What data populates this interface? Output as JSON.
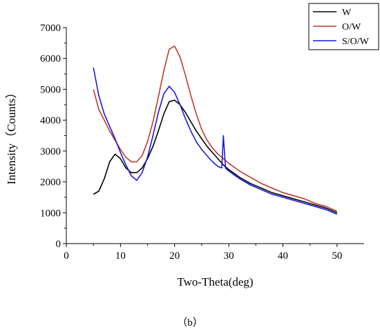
{
  "chart_data": {
    "type": "line",
    "title": "",
    "caption": "（b）",
    "xlabel": "Two-Theta(deg)",
    "ylabel": "Intensity（Counts）",
    "xlim": [
      0,
      55
    ],
    "ylim": [
      0,
      7000
    ],
    "xticks": [
      0,
      10,
      20,
      30,
      40,
      50
    ],
    "yticks": [
      0,
      1000,
      2000,
      3000,
      4000,
      5000,
      6000,
      7000
    ],
    "grid": false,
    "legend_position": "top-right",
    "series": [
      {
        "name": "W",
        "color": "#000000",
        "x": [
          5,
          6,
          7,
          8,
          9,
          10,
          11,
          12,
          13,
          14,
          15,
          16,
          17,
          18,
          19,
          20,
          21,
          22,
          23,
          24,
          25,
          26,
          27,
          28,
          29,
          30,
          32,
          34,
          36,
          38,
          40,
          42,
          44,
          46,
          48,
          50
        ],
        "y": [
          1600,
          1700,
          2100,
          2650,
          2900,
          2750,
          2450,
          2300,
          2300,
          2450,
          2750,
          3150,
          3650,
          4200,
          4600,
          4650,
          4500,
          4250,
          3950,
          3650,
          3400,
          3150,
          2950,
          2750,
          2550,
          2400,
          2150,
          1950,
          1800,
          1650,
          1550,
          1450,
          1350,
          1250,
          1150,
          1000
        ]
      },
      {
        "name": "O/W",
        "color": "#c0392b",
        "x": [
          5,
          6,
          7,
          8,
          9,
          10,
          11,
          12,
          13,
          14,
          15,
          16,
          17,
          18,
          19,
          20,
          21,
          22,
          23,
          24,
          25,
          26,
          27,
          28,
          29,
          30,
          32,
          34,
          36,
          38,
          40,
          42,
          44,
          46,
          48,
          50
        ],
        "y": [
          5000,
          4350,
          4000,
          3650,
          3350,
          3050,
          2800,
          2650,
          2650,
          2850,
          3300,
          3950,
          4750,
          5600,
          6300,
          6400,
          6050,
          5450,
          4800,
          4200,
          3700,
          3350,
          3100,
          2900,
          2750,
          2600,
          2350,
          2150,
          1950,
          1800,
          1650,
          1550,
          1450,
          1300,
          1200,
          1050
        ]
      },
      {
        "name": "S/O/W",
        "color": "#1a1adb",
        "x": [
          5,
          6,
          7,
          8,
          9,
          10,
          11,
          12,
          13,
          14,
          15,
          16,
          17,
          18,
          19,
          20,
          21,
          22,
          23,
          24,
          25,
          26,
          27,
          28,
          28.7,
          29,
          29.4,
          30,
          32,
          34,
          36,
          38,
          40,
          42,
          44,
          46,
          48,
          50
        ],
        "y": [
          5700,
          4800,
          4200,
          3800,
          3400,
          2950,
          2550,
          2200,
          2050,
          2300,
          2800,
          3500,
          4250,
          4850,
          5100,
          4900,
          4500,
          4050,
          3650,
          3300,
          3050,
          2850,
          2650,
          2500,
          2450,
          3500,
          2450,
          2350,
          2100,
          1900,
          1750,
          1600,
          1500,
          1400,
          1300,
          1200,
          1100,
          950
        ]
      }
    ]
  }
}
